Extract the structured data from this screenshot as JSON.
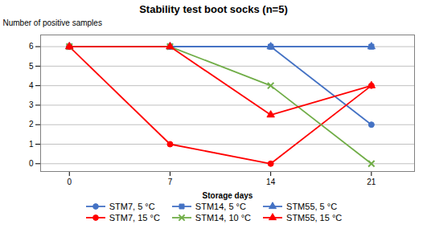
{
  "chart_data": {
    "type": "line",
    "title": "Stability test boot socks (n=5)",
    "xlabel": "Storage days",
    "ylabel": "Number of positive samples",
    "x": [
      0,
      7,
      14,
      21
    ],
    "series": [
      {
        "name": "STM7, 5 °C",
        "color": "#4472C4",
        "marker": "circle",
        "line_style": "solid",
        "values": [
          6,
          6,
          6,
          2
        ]
      },
      {
        "name": "STM14, 5 °C",
        "color": "#4472C4",
        "marker": "square",
        "line_style": "solid",
        "values": [
          6,
          6,
          6,
          6
        ]
      },
      {
        "name": "STM55, 5 °C",
        "color": "#4472C4",
        "marker": "triangle",
        "line_style": "solid",
        "values": [
          6,
          6,
          6,
          6
        ]
      },
      {
        "name": "STM7, 15 °C",
        "color": "#FF0000",
        "marker": "circle",
        "line_style": "solid",
        "values": [
          6,
          1,
          0,
          4
        ]
      },
      {
        "name": "STM14, 10 °C",
        "color": "#70AD47",
        "marker": "times",
        "line_style": "solid",
        "values": [
          6,
          6,
          4,
          0
        ]
      },
      {
        "name": "STM55, 15 °C",
        "color": "#FF0000",
        "marker": "triangle",
        "line_style": "solid",
        "values": [
          6,
          6,
          2.5,
          4
        ]
      }
    ],
    "xlim": [
      -2,
      24
    ],
    "xticks": [
      0,
      7,
      14,
      21
    ],
    "ylim": [
      -0.4,
      6.6
    ],
    "yticks": [
      0,
      1,
      2,
      3,
      4,
      5,
      6
    ],
    "grid": "y",
    "legend": "bottom"
  }
}
